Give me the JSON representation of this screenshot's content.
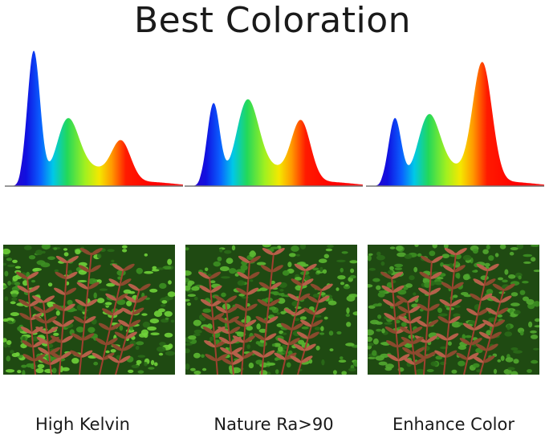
{
  "title": "Best Coloration",
  "modes": [
    {
      "caption": "High Kelvin",
      "peaks": {
        "blue": 1.0,
        "green": 0.47,
        "red": 0.3
      },
      "photo_tint": "#6fd13a"
    },
    {
      "caption": "Nature Ra>90",
      "peaks": {
        "blue": 0.61,
        "green": 0.61,
        "red": 0.45
      },
      "photo_tint": "#5cb832"
    },
    {
      "caption": "Enhance Color",
      "peaks": {
        "blue": 0.5,
        "green": 0.5,
        "red": 0.88
      },
      "photo_tint": "#52a930"
    }
  ],
  "colors": {
    "blue": "#1010e0",
    "green": "#22d85a",
    "yellow": "#f4e800",
    "red": "#ff1a00",
    "stem": "#a04030"
  }
}
